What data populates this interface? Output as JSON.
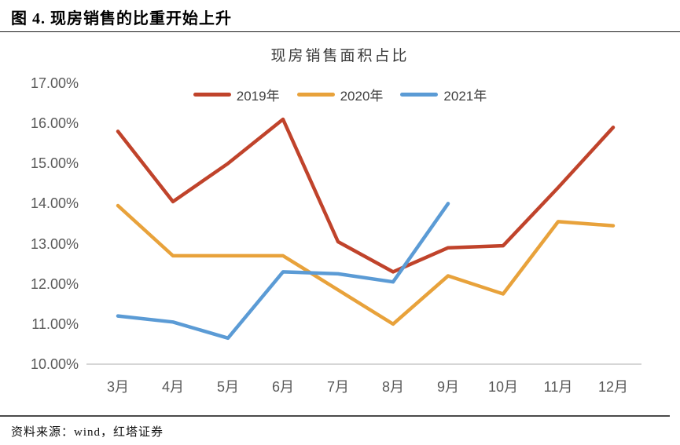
{
  "figure": {
    "title": "图 4. 现房销售的比重开始上升",
    "source": "资料来源：wind，红塔证券"
  },
  "chart_data": {
    "type": "line",
    "title": "现房销售面积占比",
    "categories": [
      "3月",
      "4月",
      "5月",
      "6月",
      "7月",
      "8月",
      "9月",
      "10月",
      "11月",
      "12月"
    ],
    "series": [
      {
        "name": "2019年",
        "color": "#C0432B",
        "values": [
          15.8,
          14.05,
          15.0,
          16.1,
          13.05,
          12.3,
          12.9,
          12.95,
          14.4,
          15.9
        ]
      },
      {
        "name": "2020年",
        "color": "#E8A23B",
        "values": [
          13.95,
          12.7,
          12.7,
          12.7,
          11.85,
          11.0,
          12.2,
          11.75,
          13.55,
          13.45
        ]
      },
      {
        "name": "2021年",
        "color": "#5B9BD5",
        "values": [
          11.2,
          11.05,
          10.65,
          12.3,
          12.25,
          12.05,
          14.0
        ]
      }
    ],
    "ylim": [
      10,
      17
    ],
    "yticks": [
      {
        "label": "17.00%",
        "value": 17
      },
      {
        "label": "16.00%",
        "value": 16
      },
      {
        "label": "15.00%",
        "value": 15
      },
      {
        "label": "14.00%",
        "value": 14
      },
      {
        "label": "13.00%",
        "value": 13
      },
      {
        "label": "12.00%",
        "value": 12
      },
      {
        "label": "11.00%",
        "value": 11
      },
      {
        "label": "10.00%",
        "value": 10
      }
    ],
    "xlabel": "",
    "ylabel": "",
    "grid": false,
    "legend_position": "top"
  }
}
